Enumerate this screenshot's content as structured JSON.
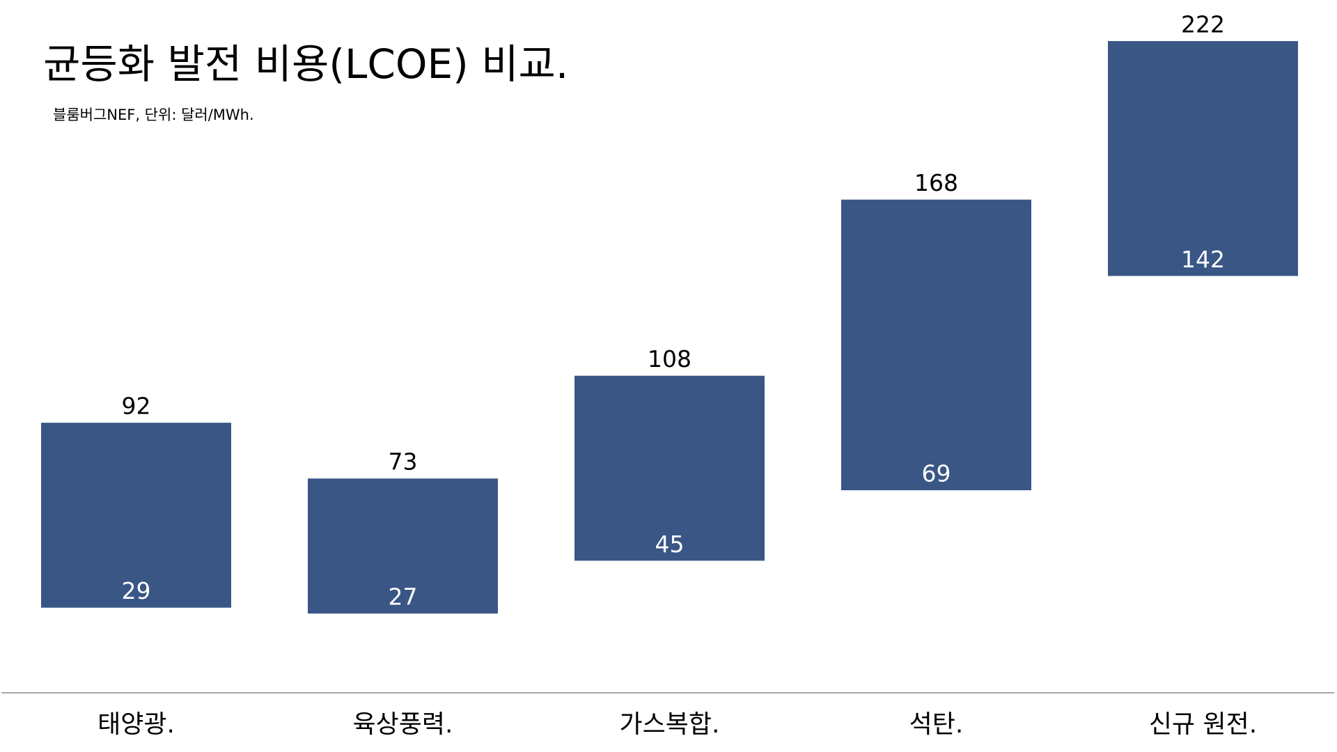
{
  "chart_data": {
    "type": "floating-bar",
    "title": "균등화 발전 비용(LCOE) 비교.",
    "subtitle": "블룸버그NEF, 단위: 달러/MWh.",
    "categories": [
      "태양광.",
      "육상풍력.",
      "가스복합.",
      "석탄.",
      "신규 원전."
    ],
    "low": [
      29,
      27,
      45,
      69,
      142
    ],
    "high": [
      92,
      73,
      108,
      168,
      222
    ],
    "color": "#395685",
    "ylim": [
      0,
      236
    ]
  }
}
